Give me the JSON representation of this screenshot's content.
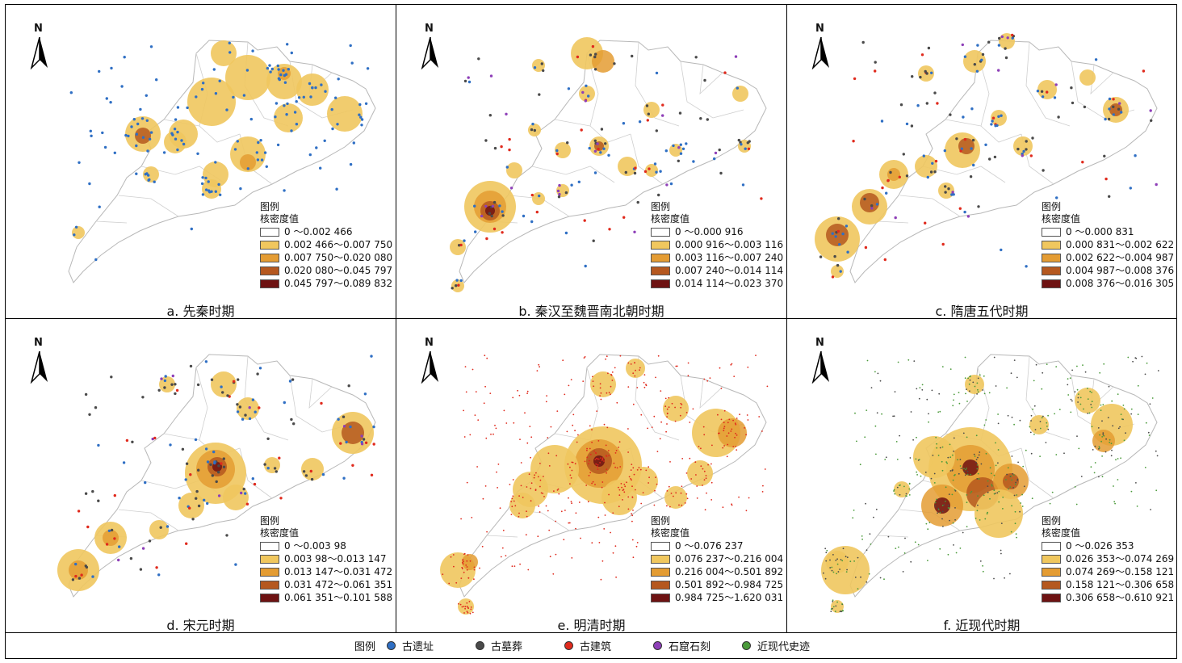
{
  "panels": [
    {
      "caption": "a. 先秦时期",
      "north": "N",
      "legend_title": "图例",
      "legend_subtitle": "核密度值",
      "classes": [
        "0 ～0.002 466",
        "0.002 466～0.007 750",
        "0.007 750～0.020 080",
        "0.020 080～0.045 797",
        "0.045 797～0.089 832"
      ],
      "points": "blue"
    },
    {
      "caption": "b. 秦汉至魏晋南北朝时期",
      "north": "N",
      "legend_title": "图例",
      "legend_subtitle": "核密度值",
      "classes": [
        "0 ～0.000 916",
        "0.000 916～0.003 116",
        "0.003 116～0.007 240",
        "0.007 240～0.014 114",
        "0.014 114～0.023 370"
      ],
      "points": "mixed"
    },
    {
      "caption": "c. 隋唐五代时期",
      "north": "N",
      "legend_title": "图例",
      "legend_subtitle": "核密度值",
      "classes": [
        "0 ～0.000 831",
        "0.000 831～0.002 622",
        "0.002 622～0.004 987",
        "0.004 987～0.008 376",
        "0.008 376～0.016 305"
      ],
      "points": "mixed"
    },
    {
      "caption": "d. 宋元时期",
      "north": "N",
      "legend_title": "图例",
      "legend_subtitle": "核密度值",
      "classes": [
        "0 ～0.003 98",
        "0.003 98～0.013 147",
        "0.013 147～0.031 472",
        "0.031 472～0.061 351",
        "0.061 351～0.101 588"
      ],
      "points": "mixed"
    },
    {
      "caption": "e. 明清时期",
      "north": "N",
      "legend_title": "图例",
      "legend_subtitle": "核密度值",
      "classes": [
        "0 ～0.076 237",
        "0.076 237～0.216 004",
        "0.216 004～0.501 892",
        "0.501 892～0.984 725",
        "0.984 725～1.620 031"
      ],
      "points": "red"
    },
    {
      "caption": "f. 近现代时期",
      "north": "N",
      "legend_title": "图例",
      "legend_subtitle": "核密度值",
      "classes": [
        "0 ～0.026 353",
        "0.026 353～0.074 269",
        "0.074 269～0.158 121",
        "0.158 121～0.306 658",
        "0.306 658～0.610 921"
      ],
      "points": "green"
    }
  ],
  "class_colors": [
    "#ffffff",
    "#f0c75e",
    "#e49c33",
    "#b5581f",
    "#6e1212"
  ],
  "bottom_legend": {
    "title": "图例",
    "items": [
      {
        "label": "古遗址",
        "color": "#2f6fc4"
      },
      {
        "label": "古墓葬",
        "color": "#4a4a4a"
      },
      {
        "label": "古建筑",
        "color": "#e02a1d"
      },
      {
        "label": "石窟石刻",
        "color": "#8e3fb8"
      },
      {
        "label": "近现代史迹",
        "color": "#4a9a3a"
      }
    ]
  }
}
